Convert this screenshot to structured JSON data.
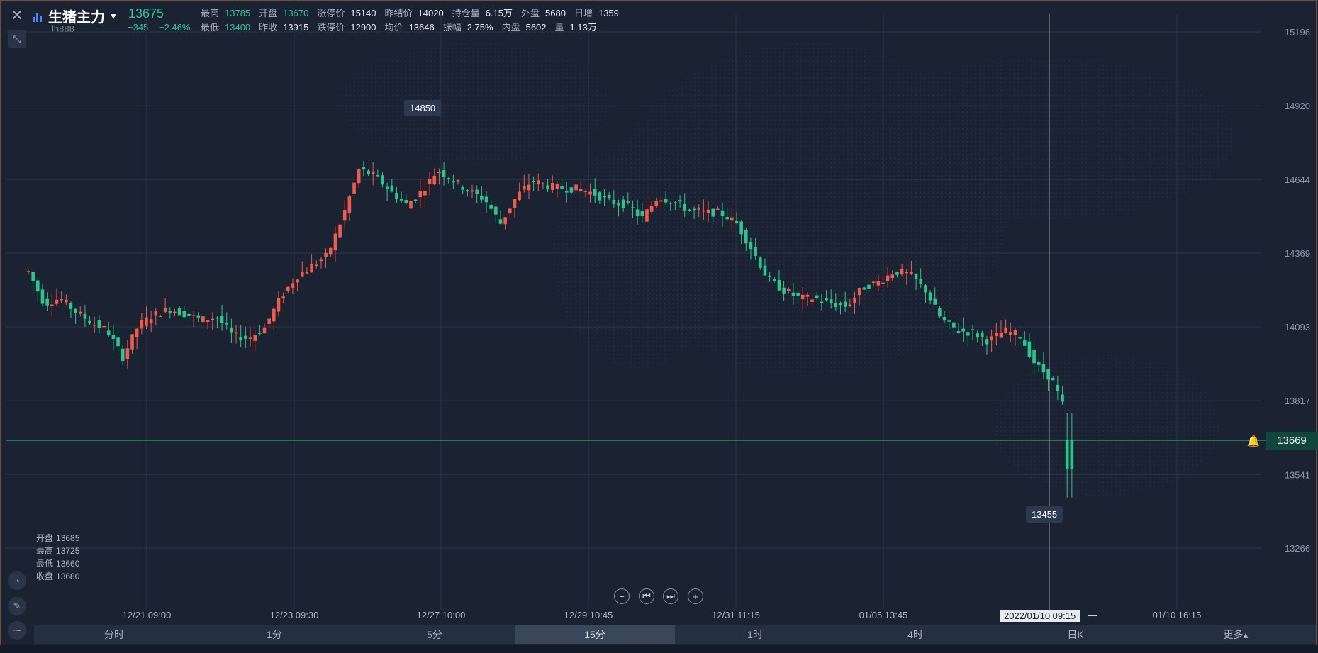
{
  "header": {
    "name": "生猪主力",
    "code": "lh888",
    "price": "13675",
    "change": "−345",
    "change_pct": "−2.46%",
    "row1": [
      {
        "label": "最高",
        "value": "13785",
        "tone": "g"
      },
      {
        "label": "开盘",
        "value": "13670",
        "tone": "g"
      },
      {
        "label": "涨停价",
        "value": "15140",
        "tone": ""
      },
      {
        "label": "昨结价",
        "value": "14020",
        "tone": ""
      },
      {
        "label": "持仓量",
        "value": "6.15万",
        "tone": ""
      },
      {
        "label": "外盘",
        "value": "5680",
        "tone": ""
      },
      {
        "label": "日增",
        "value": "1359",
        "tone": ""
      }
    ],
    "row2": [
      {
        "label": "最低",
        "value": "13400",
        "tone": "g"
      },
      {
        "label": "昨收",
        "value": "13915",
        "tone": ""
      },
      {
        "label": "跌停价",
        "value": "12900",
        "tone": ""
      },
      {
        "label": "均价",
        "value": "13646",
        "tone": ""
      },
      {
        "label": "振幅",
        "value": "2.75%",
        "tone": ""
      },
      {
        "label": "内盘",
        "value": "5602",
        "tone": ""
      },
      {
        "label": "量",
        "value": "1.13万",
        "tone": ""
      }
    ]
  },
  "ohlc": {
    "open_label": "开盘",
    "open": "13685",
    "high_label": "最高",
    "high": "13725",
    "low_label": "最低",
    "low": "13660",
    "close_label": "收盘",
    "close": "13680"
  },
  "chart_data": {
    "type": "candlestick",
    "y_ticks": [
      "15196",
      "14920",
      "14644",
      "14369",
      "14093",
      "13817",
      "13541",
      "13266"
    ],
    "x_ticks": [
      "12/21 09:00",
      "12/23 09:30",
      "12/27 10:00",
      "12/29 10:45",
      "12/31 11:15",
      "01/05 13:45",
      "01/10 16:15"
    ],
    "crosshair_time": "2022/01/10 09:15",
    "high_marker": "14850",
    "low_marker": "13455",
    "last_price": "13669",
    "colors": {
      "up": "#f25a4b",
      "down": "#2fc48d",
      "grid": "#2b3548",
      "last_line": "#2fc48d"
    },
    "path_points": [
      [
        0,
        14300
      ],
      [
        10,
        14180
      ],
      [
        20,
        14200
      ],
      [
        30,
        14150
      ],
      [
        40,
        14110
      ],
      [
        50,
        14080
      ],
      [
        60,
        13980
      ],
      [
        70,
        14100
      ],
      [
        80,
        14140
      ],
      [
        90,
        14160
      ],
      [
        100,
        14140
      ],
      [
        110,
        14120
      ],
      [
        120,
        14130
      ],
      [
        130,
        14060
      ],
      [
        140,
        14050
      ],
      [
        150,
        14090
      ],
      [
        160,
        14200
      ],
      [
        170,
        14280
      ],
      [
        180,
        14320
      ],
      [
        190,
        14360
      ],
      [
        200,
        14510
      ],
      [
        210,
        14680
      ],
      [
        220,
        14660
      ],
      [
        230,
        14600
      ],
      [
        240,
        14550
      ],
      [
        250,
        14600
      ],
      [
        260,
        14680
      ],
      [
        270,
        14640
      ],
      [
        280,
        14600
      ],
      [
        290,
        14570
      ],
      [
        300,
        14480
      ],
      [
        310,
        14580
      ],
      [
        320,
        14640
      ],
      [
        330,
        14620
      ],
      [
        340,
        14610
      ],
      [
        350,
        14610
      ],
      [
        360,
        14590
      ],
      [
        370,
        14560
      ],
      [
        380,
        14550
      ],
      [
        390,
        14500
      ],
      [
        400,
        14580
      ],
      [
        410,
        14560
      ],
      [
        420,
        14530
      ],
      [
        430,
        14520
      ],
      [
        440,
        14520
      ],
      [
        450,
        14480
      ],
      [
        460,
        14380
      ],
      [
        470,
        14270
      ],
      [
        480,
        14230
      ],
      [
        490,
        14200
      ],
      [
        500,
        14200
      ],
      [
        510,
        14180
      ],
      [
        520,
        14170
      ],
      [
        530,
        14240
      ],
      [
        540,
        14260
      ],
      [
        550,
        14300
      ],
      [
        560,
        14290
      ],
      [
        570,
        14230
      ],
      [
        580,
        14120
      ],
      [
        590,
        14080
      ],
      [
        600,
        14070
      ],
      [
        610,
        14040
      ],
      [
        620,
        14080
      ],
      [
        630,
        14060
      ],
      [
        640,
        13950
      ],
      [
        650,
        13900
      ],
      [
        660,
        13760
      ],
      [
        662,
        13560
      ],
      [
        664,
        13669
      ]
    ],
    "high_x": 247,
    "low_x": 662
  },
  "nav": {
    "zoom_out": "−",
    "first": "⏮",
    "last": "⏭",
    "zoom_in": "+"
  },
  "tabs": [
    "分时",
    "1分",
    "5分",
    "15分",
    "1时",
    "4时",
    "日K",
    "更多▴"
  ],
  "active_tab": "15分"
}
